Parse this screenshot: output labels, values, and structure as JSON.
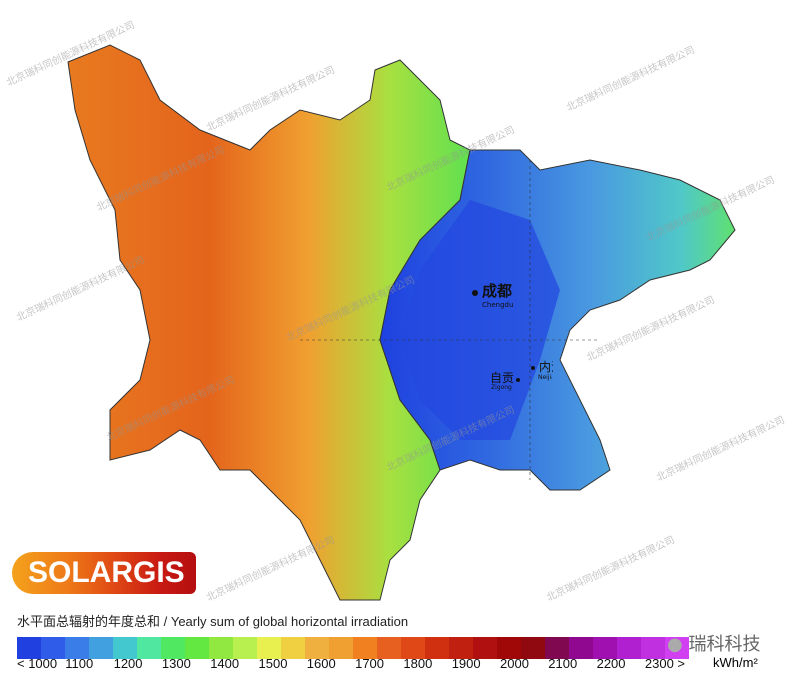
{
  "map": {
    "brand": "SOLARGIS",
    "title": "水平面总辐射的年度总和 / Yearly sum of global horizontal irradiation",
    "cities": [
      {
        "name_cn": "成都",
        "name_en": "Chengdu"
      },
      {
        "name_cn": "自贡",
        "name_en": "Zigong"
      },
      {
        "name_cn": "内江",
        "name_en": "Neijiang"
      }
    ],
    "watermark": "北京瑞科同创能源科技有限公司",
    "wechat_label": "瑞科科技",
    "legend": {
      "unit": "kWh/m²",
      "tick_labels": [
        "< 1000",
        "1100",
        "1200",
        "1300",
        "1400",
        "1500",
        "1600",
        "1700",
        "1800",
        "1900",
        "2000",
        "2100",
        "2200",
        "2300 >"
      ],
      "colors": [
        "#2040e0",
        "#2f5ce8",
        "#3a7ce8",
        "#40a0e0",
        "#44c8d0",
        "#50e8a0",
        "#50e860",
        "#62e840",
        "#90e840",
        "#b8f050",
        "#e8f050",
        "#f0d040",
        "#f0b040",
        "#f0a030",
        "#f08020",
        "#e86020",
        "#e04818",
        "#d03010",
        "#c02010",
        "#b01010",
        "#a00808",
        "#900810",
        "#800850",
        "#900890",
        "#a010b0",
        "#b020d0",
        "#c030e0",
        "#d040f0"
      ]
    }
  }
}
